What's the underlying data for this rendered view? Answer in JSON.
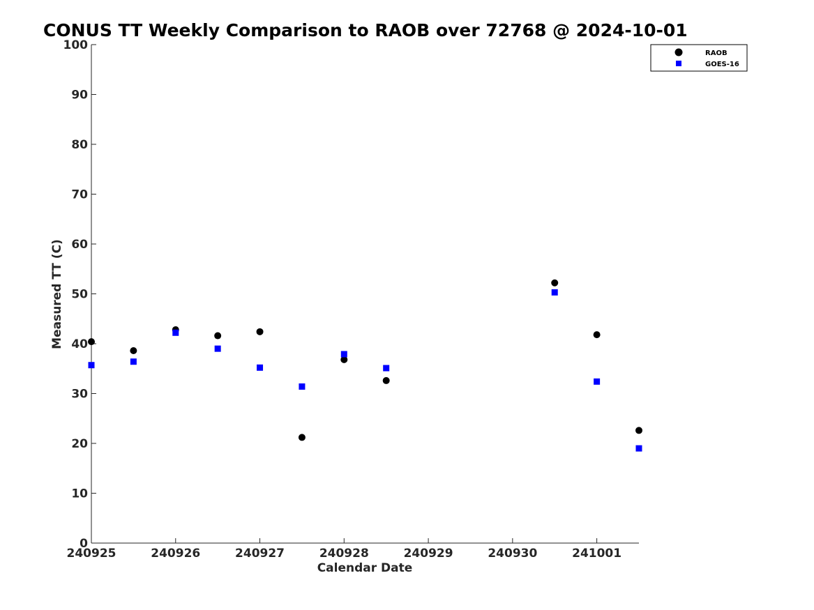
{
  "chart_data": {
    "type": "scatter",
    "title": "CONUS TT Weekly Comparison to RAOB over 72768 @ 2024-10-01",
    "xlabel": "Calendar Date",
    "ylabel": "Measured TT (C)",
    "xlim": [
      0,
      6.5
    ],
    "ylim": [
      0,
      100
    ],
    "x_ticks": [
      {
        "value": 0,
        "label": "240925"
      },
      {
        "value": 1,
        "label": "240926"
      },
      {
        "value": 2,
        "label": "240927"
      },
      {
        "value": 3,
        "label": "240928"
      },
      {
        "value": 4,
        "label": "240929"
      },
      {
        "value": 5,
        "label": "240930"
      },
      {
        "value": 6,
        "label": "241001"
      }
    ],
    "y_ticks": [
      0,
      10,
      20,
      30,
      40,
      50,
      60,
      70,
      80,
      90,
      100
    ],
    "grid": false,
    "legend": {
      "position": "top-right"
    },
    "series": [
      {
        "name": "RAOB",
        "marker": "circle",
        "color": "#000000",
        "x": [
          0,
          0.5,
          1,
          1.5,
          2,
          2.5,
          3,
          3.5,
          5.5,
          6,
          6.5
        ],
        "y": [
          40.4,
          38.6,
          42.8,
          41.6,
          42.4,
          21.2,
          36.8,
          32.6,
          52.2,
          41.8,
          22.6
        ]
      },
      {
        "name": "GOES-16",
        "marker": "square",
        "color": "#0000ff",
        "x": [
          0,
          0.5,
          1,
          1.5,
          2,
          2.5,
          3,
          3.5,
          5.5,
          6,
          6.5
        ],
        "y": [
          35.7,
          36.4,
          42.2,
          39.0,
          35.2,
          31.4,
          37.9,
          35.1,
          50.3,
          32.4,
          19.0
        ]
      }
    ]
  }
}
